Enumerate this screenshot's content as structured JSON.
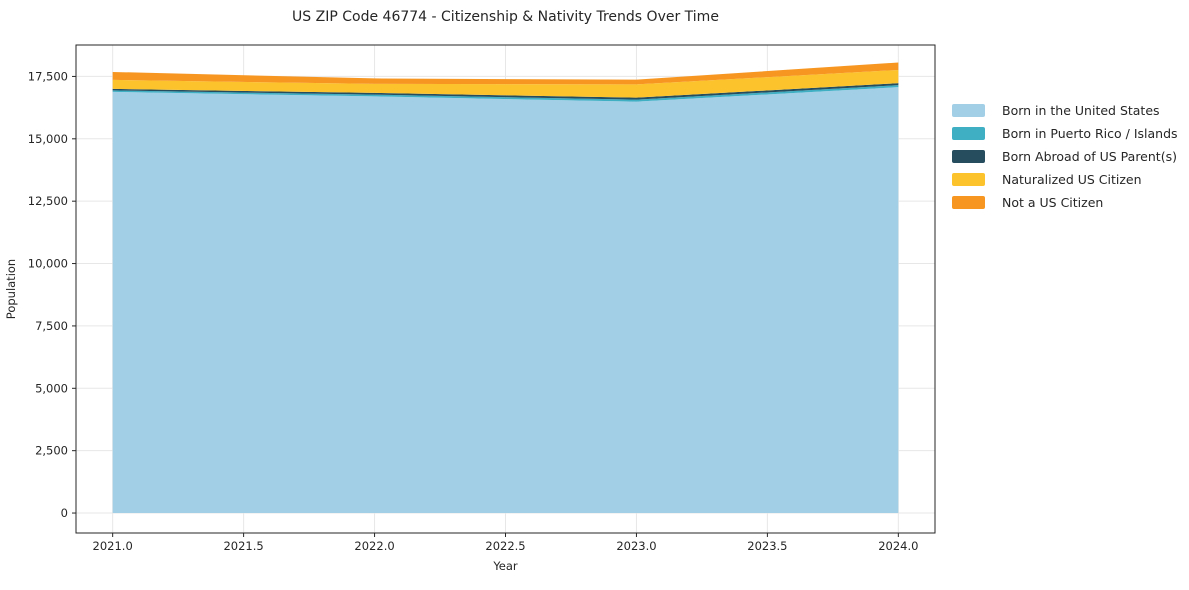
{
  "title": "US ZIP Code 46774 - Citizenship & Nativity Trends Over Time",
  "chart_data": {
    "type": "area",
    "stacked": true,
    "title": "US ZIP Code 46774 - Citizenship & Nativity Trends Over Time",
    "xlabel": "Year",
    "ylabel": "Population",
    "x": [
      2021,
      2022,
      2023,
      2024
    ],
    "series": [
      {
        "name": "Born in the United States",
        "color": "#a3cfe6",
        "values": [
          16880,
          16700,
          16490,
          17070
        ]
      },
      {
        "name": "Born in Puerto Rico / Islands",
        "color": "#3fafc4",
        "values": [
          60,
          70,
          80,
          80
        ]
      },
      {
        "name": "Born Abroad of US Parent(s)",
        "color": "#264d5e",
        "values": [
          60,
          70,
          80,
          80
        ]
      },
      {
        "name": "Naturalized US Citizen",
        "color": "#fcc32d",
        "values": [
          360,
          360,
          530,
          530
        ]
      },
      {
        "name": "Not a US Citizen",
        "color": "#f79722",
        "values": [
          320,
          220,
          190,
          300
        ]
      }
    ],
    "totals": [
      17680,
      17420,
      17370,
      18060
    ],
    "xlim": [
      2020.86,
      2024.14
    ],
    "ylim": [
      -800,
      18760
    ],
    "xticks": [
      2021.0,
      2021.5,
      2022.0,
      2022.5,
      2023.0,
      2023.5,
      2024.0
    ],
    "xtick_labels": [
      "2021.0",
      "2021.5",
      "2022.0",
      "2022.5",
      "2023.0",
      "2023.5",
      "2024.0"
    ],
    "yticks": [
      0,
      2500,
      5000,
      7500,
      10000,
      12500,
      15000,
      17500
    ],
    "ytick_labels": [
      "0",
      "2,500",
      "5,000",
      "7,500",
      "10,000",
      "12,500",
      "15,000",
      "17,500"
    ],
    "grid": true,
    "legend_position": "right-outside",
    "colors": {
      "grid": "#e7e7e7",
      "spine": "#262626",
      "text": "#262626",
      "plot_background": "#ffffff"
    }
  }
}
